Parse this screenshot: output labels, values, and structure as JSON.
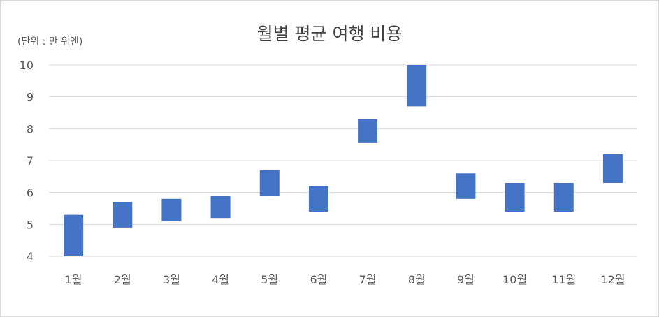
{
  "chart_data": {
    "type": "bar",
    "title": "월별 평균 여행 비용",
    "unit_label": "(단위 : 만 위엔)",
    "categories": [
      "1월",
      "2월",
      "3월",
      "4월",
      "5월",
      "6월",
      "7월",
      "8월",
      "9월",
      "10월",
      "11월",
      "12월"
    ],
    "series": [
      {
        "values_low": [
          4.0,
          4.9,
          5.1,
          5.2,
          5.9,
          5.4,
          7.55,
          8.7,
          5.8,
          5.4,
          5.4,
          6.3
        ],
        "values_high": [
          5.3,
          5.7,
          5.8,
          5.9,
          6.7,
          6.2,
          8.3,
          10.0,
          6.6,
          6.3,
          6.3,
          7.2
        ]
      }
    ],
    "ylim": [
      4,
      10
    ],
    "yticks": [
      "4",
      "5",
      "6",
      "7",
      "8",
      "9",
      "10"
    ],
    "grid": true,
    "legend": "none",
    "bar_color": "#4472c4",
    "grid_color": "#d9d9d9"
  }
}
